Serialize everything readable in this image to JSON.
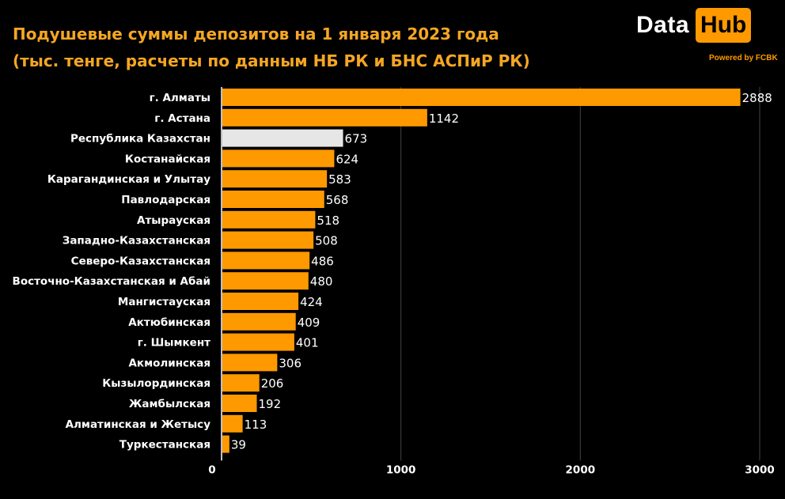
{
  "header": {
    "title_line1": "Подушевые суммы депозитов на 1 января 2023 года",
    "title_line2": "(тыс. тенге, расчеты по данным НБ РК и БНС АСПиР РК)"
  },
  "logo": {
    "data_text": "Data",
    "hub_text": "Hub",
    "powered_text": "Powered by FCBK"
  },
  "colors": {
    "background": "#000000",
    "bar": "#ff9900",
    "highlight_bar": "#e6e6e6",
    "grid": "#444444",
    "title": "#f5a623"
  },
  "chart_data": {
    "type": "bar",
    "orientation": "horizontal",
    "categories": [
      "г. Алматы",
      "г. Астана",
      "Республика Казахстан",
      "Костанайская",
      "Карагандинская и Улытау",
      "Павлодарская",
      "Атырауская",
      "Западно-Казахстанская",
      "Северо-Казахстанская",
      "Восточно-Казахстанская и Абай",
      "Мангистауская",
      "Актюбинская",
      "г. Шымкент",
      "Акмолинская",
      "Кызылординская",
      "Жамбылская",
      "Алматинская и Жетысу",
      "Туркестанская"
    ],
    "values": [
      2888,
      1142,
      673,
      624,
      583,
      568,
      518,
      508,
      486,
      480,
      424,
      409,
      401,
      306,
      206,
      192,
      113,
      39
    ],
    "highlight": [
      "Республика Казахстан"
    ],
    "xlim": [
      0,
      3000
    ],
    "xticks": [
      0,
      1000,
      2000,
      3000
    ],
    "grid": true
  }
}
